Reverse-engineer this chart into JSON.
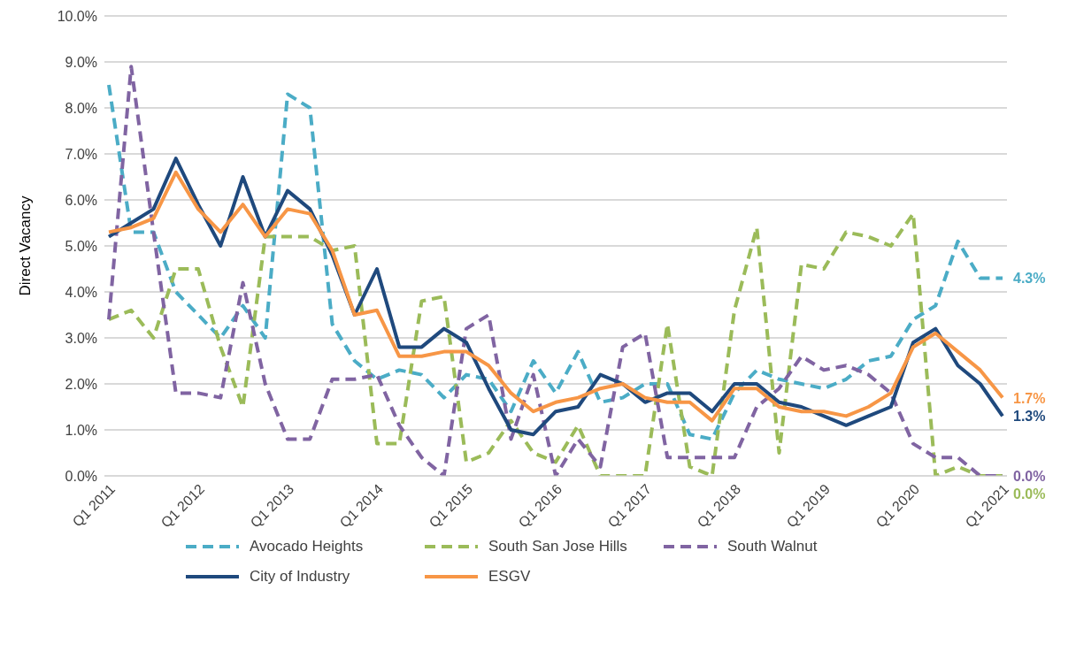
{
  "chart_data": {
    "type": "line",
    "ylabel": "Direct Vacancy",
    "categories": [
      "Q1 2011",
      null,
      null,
      null,
      "Q1 2012",
      null,
      null,
      null,
      "Q1 2013",
      null,
      null,
      null,
      "Q1 2014",
      null,
      null,
      null,
      "Q1 2015",
      null,
      null,
      null,
      "Q1 2016",
      null,
      null,
      null,
      "Q1 2017",
      null,
      null,
      null,
      "Q1 2018",
      null,
      null,
      null,
      "Q1 2019",
      null,
      null,
      null,
      "Q1 2020",
      null,
      null,
      null,
      "Q1 2021"
    ],
    "series": [
      {
        "name": "Avocado Heights",
        "color": "#4bacc6",
        "line_style": "dashed",
        "values": [
          8.5,
          5.3,
          5.3,
          4.0,
          3.5,
          3.0,
          3.7,
          3.0,
          8.3,
          8.0,
          3.3,
          2.5,
          2.1,
          2.3,
          2.2,
          1.7,
          2.2,
          2.1,
          1.4,
          2.5,
          1.8,
          2.7,
          1.6,
          1.7,
          2.0,
          2.0,
          0.9,
          0.8,
          1.8,
          2.3,
          2.1,
          2.0,
          1.9,
          2.1,
          2.5,
          2.6,
          3.4,
          3.7,
          5.1,
          4.3,
          4.3
        ],
        "value_labels": [
          null,
          null,
          null,
          null,
          null,
          null,
          null,
          null,
          null,
          null,
          null,
          null,
          null,
          null,
          null,
          null,
          null,
          null,
          null,
          null,
          null,
          null,
          null,
          null,
          null,
          null,
          null,
          null,
          null,
          null,
          null,
          null,
          null,
          null,
          null,
          null,
          null,
          null,
          null,
          null,
          "4.3%"
        ]
      },
      {
        "name": "South San Jose Hills",
        "color": "#9bbb59",
        "line_style": "dashed",
        "values": [
          3.4,
          3.6,
          3.0,
          4.5,
          4.5,
          2.8,
          1.5,
          5.2,
          5.2,
          5.2,
          4.9,
          5.0,
          0.7,
          0.7,
          3.8,
          3.9,
          0.3,
          0.5,
          1.2,
          0.5,
          0.3,
          1.1,
          0.0,
          0.0,
          0.0,
          3.3,
          0.2,
          0.0,
          3.6,
          5.4,
          0.5,
          4.6,
          4.5,
          5.3,
          5.2,
          5.0,
          5.7,
          0.0,
          0.2,
          0.0,
          0.0
        ],
        "value_labels": [
          null,
          null,
          null,
          null,
          null,
          null,
          null,
          null,
          null,
          null,
          null,
          null,
          null,
          null,
          null,
          null,
          null,
          null,
          null,
          null,
          null,
          null,
          null,
          null,
          null,
          null,
          null,
          null,
          null,
          null,
          null,
          null,
          null,
          null,
          null,
          null,
          null,
          null,
          null,
          null,
          "0.0%"
        ]
      },
      {
        "name": "South Walnut",
        "color": "#8064a2",
        "line_style": "dashed",
        "values": [
          3.4,
          8.9,
          5.3,
          1.8,
          1.8,
          1.7,
          4.2,
          2.0,
          0.8,
          0.8,
          2.1,
          2.1,
          2.2,
          1.1,
          0.4,
          0.0,
          3.2,
          3.5,
          0.8,
          2.2,
          0.0,
          0.8,
          0.2,
          2.8,
          3.1,
          0.4,
          0.4,
          0.4,
          0.4,
          1.5,
          1.9,
          2.6,
          2.3,
          2.4,
          2.2,
          1.8,
          0.7,
          0.4,
          0.4,
          0.0,
          0.0
        ],
        "value_labels": [
          null,
          null,
          null,
          null,
          null,
          null,
          null,
          null,
          null,
          null,
          null,
          null,
          null,
          null,
          null,
          null,
          null,
          null,
          null,
          null,
          null,
          null,
          null,
          null,
          null,
          null,
          null,
          null,
          null,
          null,
          null,
          null,
          null,
          null,
          null,
          null,
          null,
          null,
          null,
          null,
          "0.0%"
        ]
      },
      {
        "name": "City of Industry",
        "color": "#1f497d",
        "line_style": "solid",
        "values": [
          5.2,
          5.5,
          5.8,
          6.9,
          5.9,
          5.0,
          6.5,
          5.2,
          6.2,
          5.8,
          4.8,
          3.5,
          4.5,
          2.8,
          2.8,
          3.2,
          2.9,
          1.9,
          1.0,
          0.9,
          1.4,
          1.5,
          2.2,
          2.0,
          1.6,
          1.8,
          1.8,
          1.4,
          2.0,
          2.0,
          1.6,
          1.5,
          1.3,
          1.1,
          1.3,
          1.5,
          2.9,
          3.2,
          2.4,
          2.0,
          1.3
        ],
        "value_labels": [
          null,
          null,
          null,
          null,
          null,
          null,
          null,
          null,
          null,
          null,
          null,
          null,
          null,
          null,
          null,
          null,
          null,
          null,
          null,
          null,
          null,
          null,
          null,
          null,
          null,
          null,
          null,
          null,
          null,
          null,
          null,
          null,
          null,
          null,
          null,
          null,
          null,
          null,
          null,
          null,
          "1.3%"
        ]
      },
      {
        "name": "ESGV",
        "color": "#f79646",
        "line_style": "solid",
        "values": [
          5.3,
          5.4,
          5.6,
          6.6,
          5.8,
          5.3,
          5.9,
          5.2,
          5.8,
          5.7,
          4.9,
          3.5,
          3.6,
          2.6,
          2.6,
          2.7,
          2.7,
          2.4,
          1.8,
          1.4,
          1.6,
          1.7,
          1.9,
          2.0,
          1.7,
          1.6,
          1.6,
          1.2,
          1.9,
          1.9,
          1.5,
          1.4,
          1.4,
          1.3,
          1.5,
          1.8,
          2.8,
          3.1,
          2.7,
          2.3,
          1.7
        ],
        "value_labels": [
          null,
          null,
          null,
          null,
          null,
          null,
          null,
          null,
          null,
          null,
          null,
          null,
          null,
          null,
          null,
          null,
          null,
          null,
          null,
          null,
          null,
          null,
          null,
          null,
          null,
          null,
          null,
          null,
          null,
          null,
          null,
          null,
          null,
          null,
          null,
          null,
          null,
          null,
          null,
          null,
          "1.7%"
        ]
      }
    ],
    "ylim": [
      0,
      10
    ],
    "yticks": [
      {
        "value": 0,
        "label": "0.0%"
      },
      {
        "value": 1,
        "label": "1.0%"
      },
      {
        "value": 2,
        "label": "2.0%"
      },
      {
        "value": 3,
        "label": "3.0%"
      },
      {
        "value": 4,
        "label": "4.0%"
      },
      {
        "value": 5,
        "label": "5.0%"
      },
      {
        "value": 6,
        "label": "6.0%"
      },
      {
        "value": 7,
        "label": "7.0%"
      },
      {
        "value": 8,
        "label": "8.0%"
      },
      {
        "value": 9,
        "label": "9.0%"
      },
      {
        "value": 10,
        "label": "10.0%"
      }
    ],
    "grid": "y",
    "legend": "bottom",
    "marker": "none"
  }
}
